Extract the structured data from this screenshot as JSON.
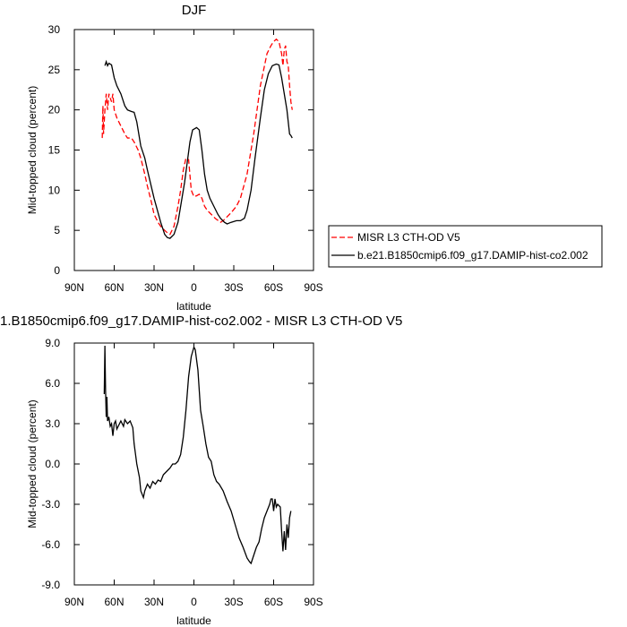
{
  "chart_data": [
    {
      "type": "line",
      "title": "DJF",
      "xlabel": "latitude",
      "ylabel": "Mid-topped cloud (percent)",
      "xlim": [
        90,
        -90
      ],
      "ylim": [
        0,
        30
      ],
      "xticks": [
        {
          "value": 90,
          "label": "90N"
        },
        {
          "value": 60,
          "label": "60N"
        },
        {
          "value": 30,
          "label": "30N"
        },
        0,
        {
          "value": -30,
          "label": "30S"
        },
        {
          "value": -60,
          "label": "60S"
        },
        {
          "value": -90,
          "label": "90S"
        }
      ],
      "yticks": [
        0,
        5,
        10,
        15,
        20,
        25,
        30
      ],
      "legend": "right",
      "series": [
        {
          "name": "MISR L3 CTH-OD V5",
          "color": "#ff0000",
          "style": "dashed",
          "x": [
            69,
            68.5,
            68,
            67,
            66,
            65,
            64,
            63,
            62,
            61,
            60,
            58,
            55,
            52,
            50,
            47,
            45,
            42,
            40,
            37,
            35,
            32,
            30,
            27,
            25,
            22,
            20,
            18,
            15,
            12,
            10,
            8,
            6,
            4,
            2,
            0,
            -2,
            -4,
            -6,
            -8,
            -10,
            -13,
            -16,
            -20,
            -22,
            -25,
            -28,
            -32,
            -35,
            -40,
            -45,
            -50,
            -55,
            -58,
            -60,
            -62,
            -64,
            -66,
            -67,
            -68,
            -69,
            -70,
            -71,
            -72,
            -73,
            -74
          ],
          "values": [
            16.5,
            20.5,
            17,
            20,
            22,
            20,
            22,
            21.5,
            21,
            22,
            20,
            19,
            18,
            17,
            16.5,
            16.5,
            16,
            15,
            14,
            12,
            10.5,
            8.5,
            7,
            6,
            5.5,
            5,
            4.7,
            4.5,
            5.5,
            8,
            10,
            12.5,
            14,
            13.8,
            10,
            9.2,
            9.3,
            9.5,
            9,
            8,
            7.5,
            7,
            6.5,
            6,
            6.2,
            6.7,
            7.2,
            8,
            9,
            12,
            17,
            23,
            27,
            28,
            28.5,
            28.8,
            28.5,
            27,
            25.5,
            27.5,
            28,
            26,
            25.5,
            23,
            21,
            20
          ]
        },
        {
          "name": "b.e21.B1850cmip6.f09_g17.DAMIP-hist-co2.002",
          "color": "#000000",
          "style": "solid",
          "x": [
            67,
            66,
            65,
            64,
            62,
            60,
            58,
            55,
            52,
            50,
            47,
            45,
            43,
            40,
            37,
            35,
            30,
            25,
            22,
            20,
            18,
            15,
            12,
            10,
            7,
            5,
            3,
            1,
            0,
            -2,
            -4,
            -6,
            -8,
            -10,
            -12,
            -15,
            -18,
            -20,
            -23,
            -25,
            -28,
            -32,
            -35,
            -38,
            -40,
            -43,
            -46,
            -50,
            -53,
            -56,
            -59,
            -62,
            -64,
            -66,
            -68,
            -70,
            -72,
            -73,
            -74
          ],
          "values": [
            25.5,
            26,
            25.5,
            25.8,
            25.6,
            24,
            23,
            22,
            20.5,
            20,
            19.8,
            19.7,
            18.5,
            15.5,
            14,
            12.5,
            9,
            6,
            4.5,
            4.1,
            4,
            4.5,
            6,
            8,
            11,
            13.5,
            16,
            17.5,
            17.6,
            17.8,
            17.5,
            15,
            12,
            10,
            9,
            8,
            7,
            6.5,
            6,
            5.8,
            6,
            6.2,
            6.2,
            6.5,
            7.5,
            10,
            14,
            19,
            22.5,
            24.5,
            25.5,
            25.7,
            25.6,
            24,
            22,
            20,
            17,
            16.8,
            16.5
          ]
        }
      ]
    },
    {
      "type": "line",
      "title": "1.B1850cmip6.f09_g17.DAMIP-hist-co2.002 - MISR L3 CTH-OD V5",
      "xlabel": "latitude",
      "ylabel": "Mid-topped cloud (percent)",
      "xlim": [
        90,
        -90
      ],
      "ylim": [
        -9,
        9
      ],
      "xticks": [
        {
          "value": 90,
          "label": "90N"
        },
        {
          "value": 60,
          "label": "60N"
        },
        {
          "value": 30,
          "label": "30N"
        },
        0,
        {
          "value": -30,
          "label": "30S"
        },
        {
          "value": -60,
          "label": "60S"
        },
        {
          "value": -90,
          "label": "90S"
        }
      ],
      "yticks": [
        {
          "value": -9,
          "label": "-9.0"
        },
        {
          "value": -6,
          "label": "-6.0"
        },
        {
          "value": -3,
          "label": "-3.0"
        },
        {
          "value": 0,
          "label": "0.0"
        },
        {
          "value": 3,
          "label": "3.0"
        },
        {
          "value": 6,
          "label": "6.0"
        },
        {
          "value": 9,
          "label": "9.0"
        }
      ],
      "series": [
        {
          "color": "#000000",
          "style": "solid",
          "x": [
            67.5,
            67,
            66.5,
            66,
            65.5,
            65,
            64,
            63,
            62,
            61,
            60,
            59,
            58,
            57,
            55,
            53,
            52,
            50,
            48,
            46,
            45,
            43,
            41,
            40,
            38,
            37,
            35,
            33,
            31,
            29,
            27,
            25,
            23,
            20,
            18,
            16,
            14,
            12,
            10,
            8,
            6,
            4,
            2,
            0,
            -1,
            -3,
            -5,
            -7,
            -9,
            -11,
            -13,
            -15,
            -17,
            -19,
            -22,
            -25,
            -28,
            -31,
            -34,
            -37,
            -40,
            -42,
            -43,
            -45,
            -47,
            -49,
            -51,
            -53,
            -55,
            -57,
            -58,
            -59,
            -60,
            -61,
            -62,
            -63,
            -65,
            -66,
            -67,
            -68,
            -69,
            -70,
            -71,
            -72,
            -73
          ],
          "values": [
            5.2,
            8.8,
            5.5,
            3.5,
            5.0,
            3.2,
            3.5,
            2.8,
            3.0,
            2.1,
            3.0,
            3.2,
            2.6,
            2.8,
            3.2,
            2.8,
            3.3,
            3.0,
            3.2,
            2.7,
            1.5,
            0,
            -1.0,
            -2.0,
            -2.5,
            -2.0,
            -1.5,
            -1.8,
            -1.3,
            -1.5,
            -1.2,
            -1.3,
            -0.8,
            -0.5,
            -0.3,
            0,
            0,
            0.2,
            0.7,
            2,
            4,
            6.5,
            8,
            8.7,
            8.5,
            7,
            4,
            2.8,
            1.5,
            0.5,
            0.2,
            -0.8,
            -1.3,
            -1.5,
            -2,
            -2.8,
            -3.5,
            -4.5,
            -5.5,
            -6.2,
            -7,
            -7.3,
            -7.4,
            -6.8,
            -6.2,
            -5.8,
            -4.8,
            -4,
            -3.5,
            -3,
            -2.6,
            -2.6,
            -3.5,
            -2.6,
            -3.2,
            -3.0,
            -3.2,
            -5.0,
            -6.5,
            -5.0,
            -6.4,
            -4.5,
            -5.5,
            -4.0,
            -3.5
          ]
        }
      ]
    }
  ]
}
